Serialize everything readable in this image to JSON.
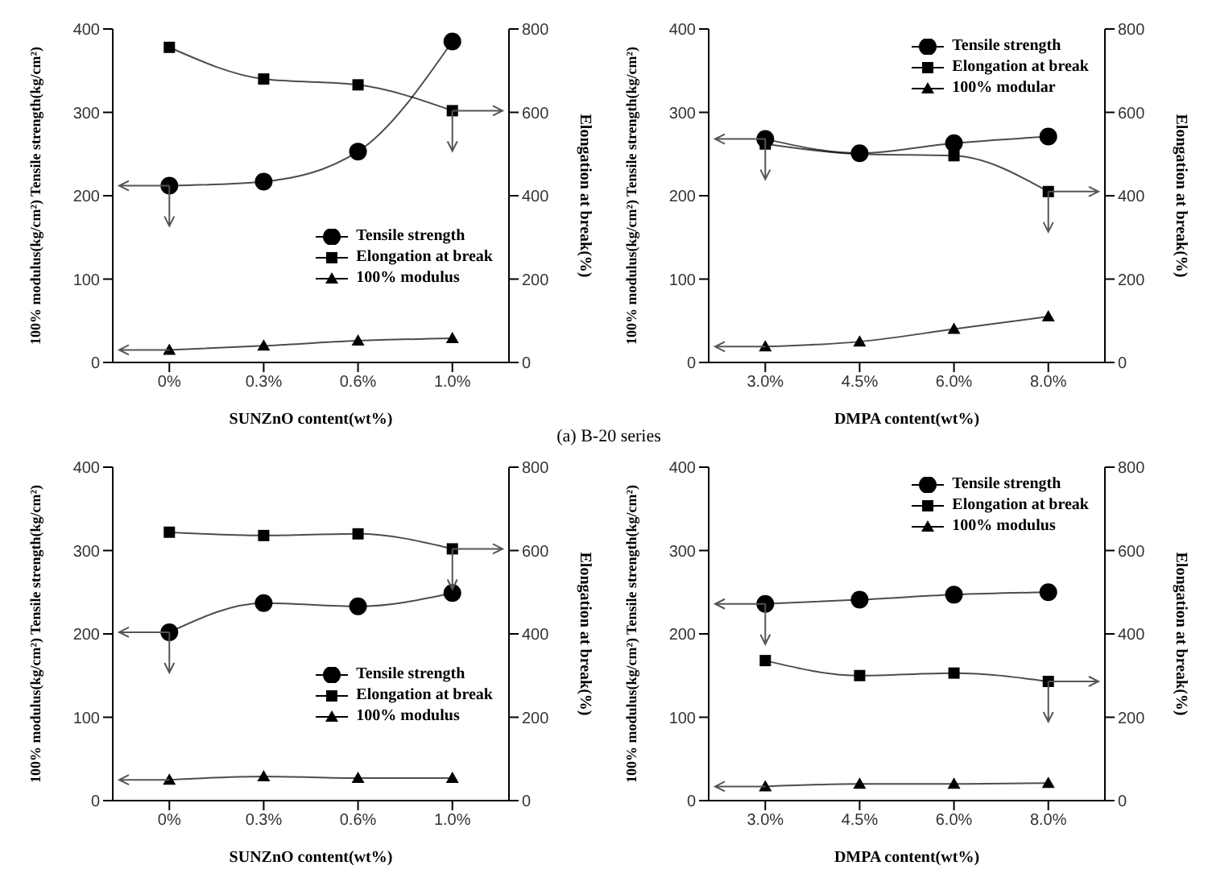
{
  "chart_data": [
    {
      "type": "line",
      "categories": [
        "0%",
        "0.3%",
        "0.6%",
        "1.0%"
      ],
      "xlabel": "SUNZnO content(wt%)",
      "ylabel": "100% modulus(kg/cm²)   Tensile strength(kg/cm²)",
      "y2label": "Elongation at break(%)",
      "ylim": [
        0,
        400
      ],
      "yticks": [
        0,
        100,
        200,
        300,
        400
      ],
      "y2lim": [
        0,
        800
      ],
      "y2ticks": [
        0,
        200,
        400,
        600,
        800
      ],
      "legend": "bottom right",
      "grid": false,
      "annotations": [
        "(a) B-20 series"
      ],
      "series": [
        {
          "name": "Tensile strength",
          "color": "#000000",
          "marker": "circle",
          "values": [
            212,
            217,
            253,
            385
          ]
        },
        {
          "name": "Elongation at break",
          "color": "#000000",
          "marker": "square",
          "axis": "y2",
          "values": [
            756,
            680,
            666,
            604
          ]
        },
        {
          "name": "100% modulus",
          "color": "#000000",
          "marker": "triangle",
          "values": [
            15,
            20,
            26,
            29
          ]
        }
      ]
    },
    {
      "type": "line",
      "categories": [
        "3.0%",
        "4.5%",
        "6.0%",
        "8.0%"
      ],
      "xlabel": "DMPA content(wt%)",
      "ylabel": "100% modulus(kg/cm²)   Tensile strength(kg/cm²)",
      "y2label": "Elongation at break(%)",
      "ylim": [
        0,
        400
      ],
      "yticks": [
        0,
        100,
        200,
        300,
        400
      ],
      "y2lim": [
        0,
        800
      ],
      "y2ticks": [
        0,
        200,
        400,
        600,
        800
      ],
      "legend": "top right",
      "grid": false,
      "series": [
        {
          "name": "Tensile strength",
          "color": "#000000",
          "marker": "circle",
          "values": [
            268,
            251,
            263,
            271
          ]
        },
        {
          "name": "Elongation at break",
          "color": "#000000",
          "marker": "square",
          "axis": "y2",
          "values": [
            524,
            500,
            496,
            410
          ]
        },
        {
          "name": "100% modular",
          "color": "#000000",
          "marker": "triangle",
          "values": [
            19,
            25,
            40,
            55
          ]
        }
      ]
    },
    {
      "type": "line",
      "categories": [
        "0%",
        "0.3%",
        "0.6%",
        "1.0%"
      ],
      "xlabel": "SUNZnO content(wt%)",
      "ylabel": "100% modulus(kg/cm²)   Tensile strength(kg/cm²)",
      "y2label": "Elongation at break(%)",
      "ylim": [
        0,
        400
      ],
      "yticks": [
        0,
        100,
        200,
        300,
        400
      ],
      "y2lim": [
        0,
        800
      ],
      "y2ticks": [
        0,
        200,
        400,
        600,
        800
      ],
      "legend": "bottom right",
      "grid": false,
      "series": [
        {
          "name": "Tensile strength",
          "color": "#000000",
          "marker": "circle",
          "values": [
            202,
            237,
            233,
            249
          ]
        },
        {
          "name": "Elongation at break",
          "color": "#000000",
          "marker": "square",
          "axis": "y2",
          "values": [
            644,
            636,
            640,
            604
          ]
        },
        {
          "name": "100% modulus",
          "color": "#000000",
          "marker": "triangle",
          "values": [
            25,
            29,
            27,
            27
          ]
        }
      ]
    },
    {
      "type": "line",
      "categories": [
        "3.0%",
        "4.5%",
        "6.0%",
        "8.0%"
      ],
      "xlabel": "DMPA content(wt%)",
      "ylabel": "100% modulus(kg/cm²)   Tensile strength(kg/cm²)",
      "y2label": "Elongation at break(%)",
      "ylim": [
        0,
        400
      ],
      "yticks": [
        0,
        100,
        200,
        300,
        400
      ],
      "y2lim": [
        0,
        800
      ],
      "y2ticks": [
        0,
        200,
        400,
        600,
        800
      ],
      "legend": "top right",
      "grid": false,
      "series": [
        {
          "name": "Tensile strength",
          "color": "#000000",
          "marker": "circle",
          "values": [
            236,
            241,
            247,
            250
          ]
        },
        {
          "name": "Elongation at break",
          "color": "#000000",
          "marker": "square",
          "axis": "y2",
          "values": [
            336,
            300,
            306,
            286
          ]
        },
        {
          "name": "100% modulus",
          "color": "#000000",
          "marker": "triangle",
          "values": [
            17,
            20,
            20,
            21
          ]
        }
      ]
    }
  ]
}
